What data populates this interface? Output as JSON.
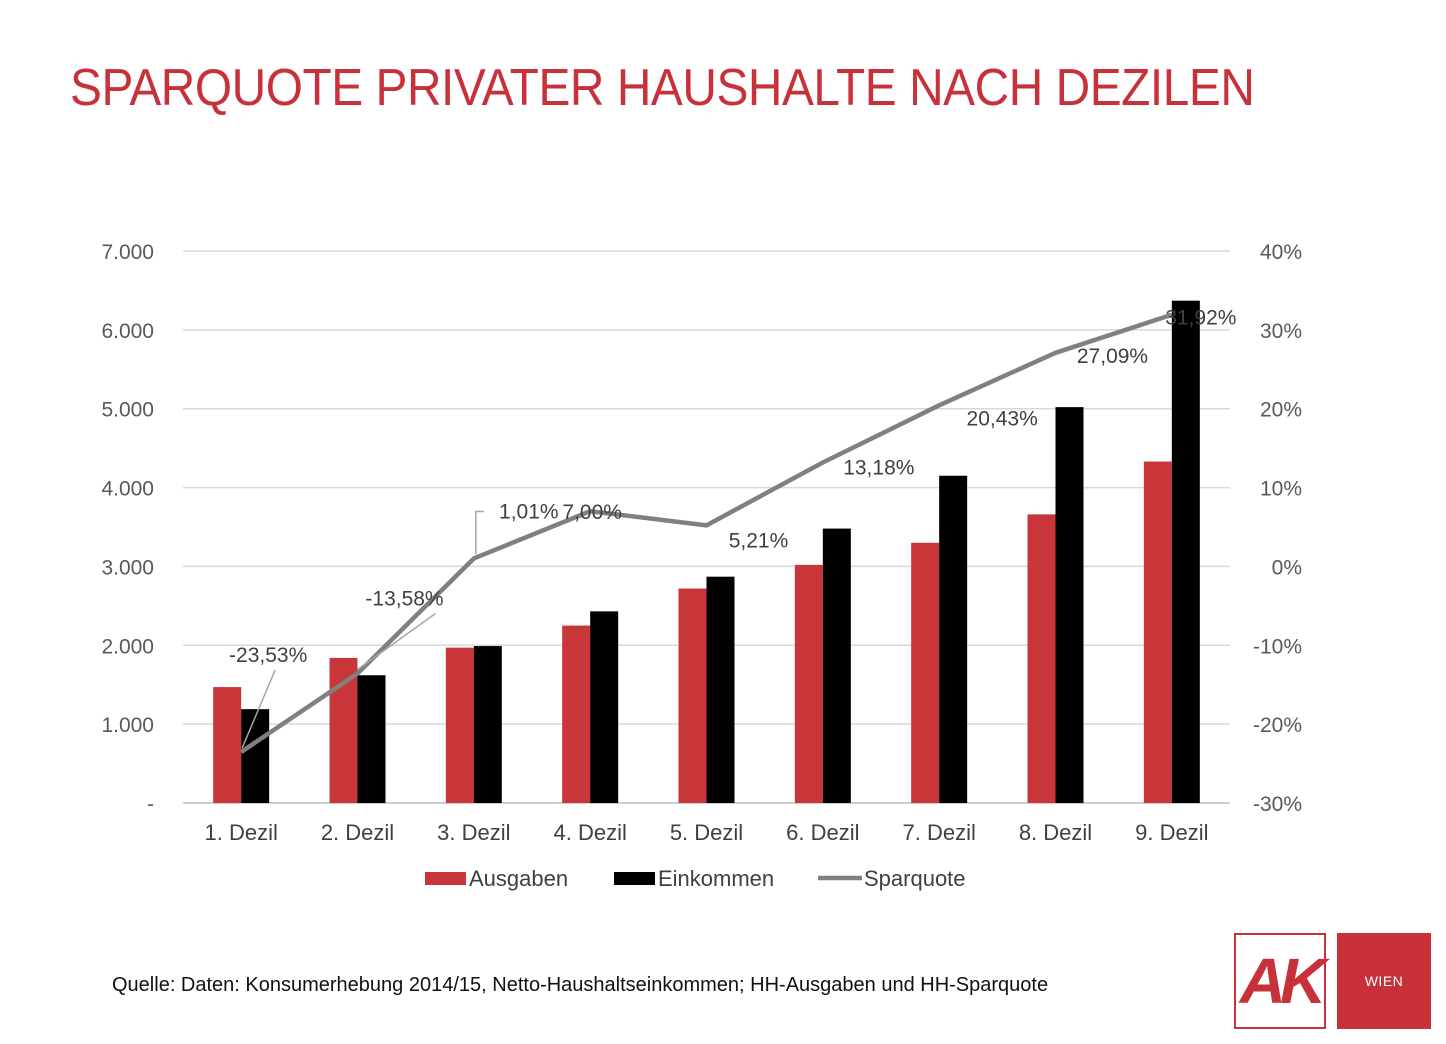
{
  "title": "SPARQUOTE PRIVATER HAUSHALTE NACH DEZILEN",
  "source": "Quelle: Daten: Konsumerhebung 2014/15, Netto-Haushaltseinkommen; HH-Ausgaben und HH-Sparquote",
  "logo": {
    "text": "AK",
    "subtext": "WIEN"
  },
  "colors": {
    "title": "#c8303a",
    "ausgaben": "#c8363a",
    "einkommen": "#000000",
    "sparquote": "#808080"
  },
  "chart_data": {
    "type": "bar",
    "categories": [
      "1. Dezil",
      "2. Dezil",
      "3. Dezil",
      "4. Dezil",
      "5. Dezil",
      "6. Dezil",
      "7. Dezil",
      "8. Dezil",
      "9. Dezil"
    ],
    "series": [
      {
        "name": "Ausgaben",
        "type": "bar",
        "axis": "left",
        "values": [
          1470,
          1840,
          1970,
          2250,
          2720,
          3020,
          3300,
          3660,
          4330
        ]
      },
      {
        "name": "Einkommen",
        "type": "bar",
        "axis": "left",
        "values": [
          1190,
          1620,
          1990,
          2430,
          2870,
          3480,
          4150,
          5020,
          6370
        ]
      },
      {
        "name": "Sparquote",
        "type": "line",
        "axis": "right",
        "values": [
          -23.53,
          -13.58,
          1.01,
          7.0,
          5.21,
          13.18,
          20.43,
          27.09,
          31.92
        ],
        "labels": [
          "-23,53%",
          "-13,58%",
          "1,01%",
          "7,00%",
          "5,21%",
          "13,18%",
          "20,43%",
          "27,09%",
          "31,92%"
        ]
      }
    ],
    "yleft": {
      "ticks": [
        "-",
        "1.000",
        "2.000",
        "3.000",
        "4.000",
        "5.000",
        "6.000",
        "7.000"
      ],
      "ylim": [
        0,
        7000
      ]
    },
    "yright": {
      "ticks": [
        "-30%",
        "-20%",
        "-10%",
        "0%",
        "10%",
        "20%",
        "30%",
        "40%"
      ],
      "ylim": [
        -30,
        40
      ]
    },
    "legend": {
      "position": "bottom",
      "entries": [
        "Ausgaben",
        "Einkommen",
        "Sparquote"
      ]
    },
    "grid": true
  }
}
